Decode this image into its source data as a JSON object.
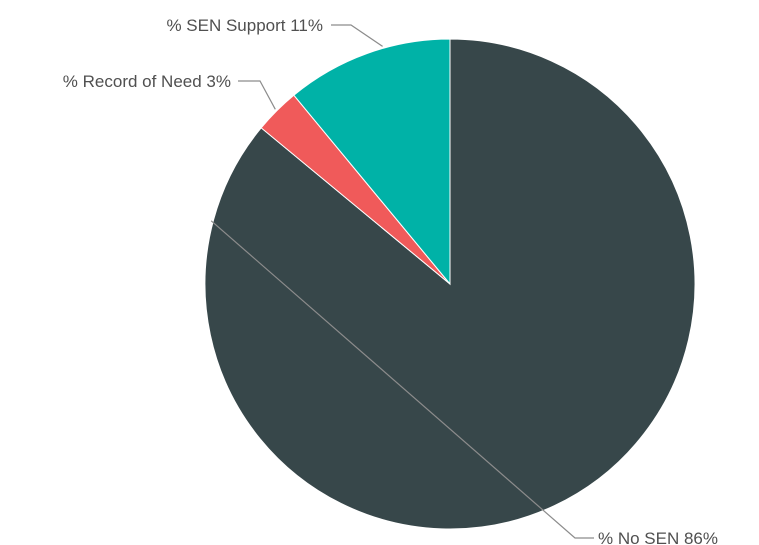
{
  "chart_data": {
    "type": "pie",
    "title": "",
    "slices": [
      {
        "label": "% No SEN",
        "value": 86,
        "display": "% No SEN 86%",
        "color": "#37474a"
      },
      {
        "label": "% Record of Need",
        "value": 3,
        "display": "% Record of Need 3%",
        "color": "#f05a5a"
      },
      {
        "label": "% SEN Support",
        "value": 11,
        "display": "% SEN Support 11%",
        "color": "#00b2a7"
      }
    ],
    "legend": "none",
    "start_angle_deg": 0,
    "direction": "clockwise"
  }
}
